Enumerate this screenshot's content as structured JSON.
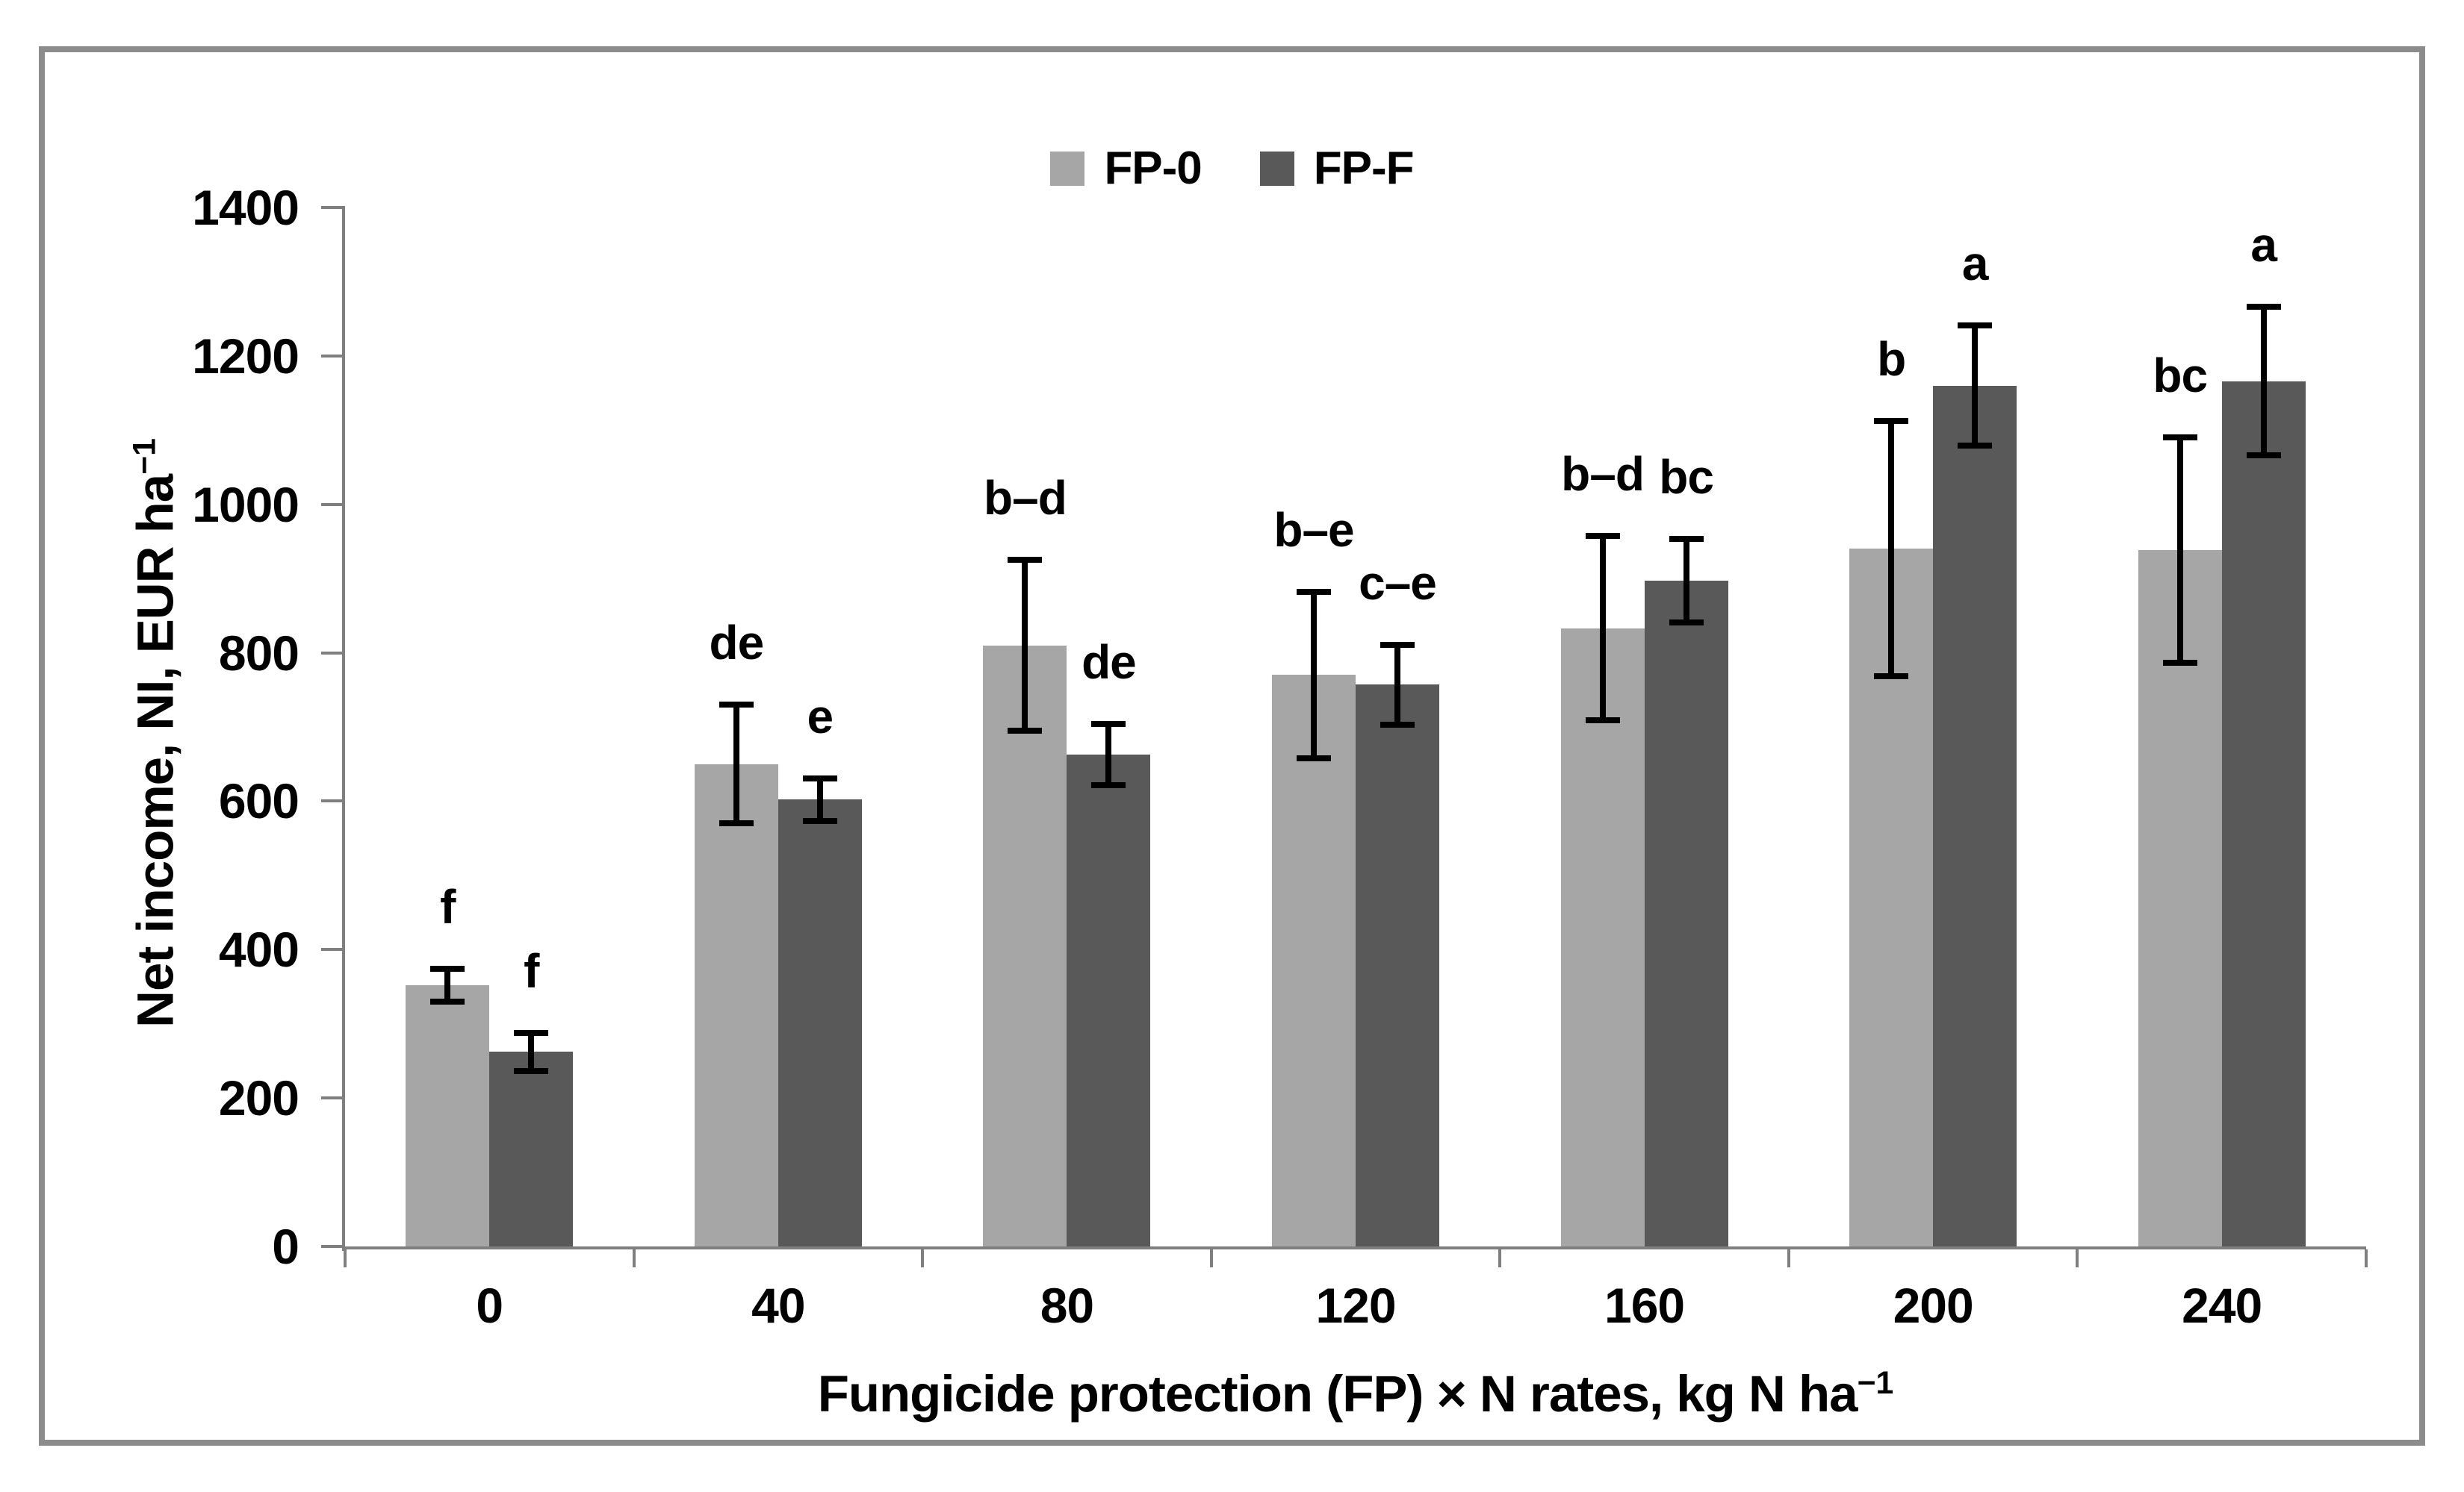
{
  "figure": {
    "border_color": "#8c8c8c",
    "background_color": "#ffffff",
    "axis_color": "#7f7f7f",
    "error_bar_color": "#000000"
  },
  "legend": {
    "items": [
      {
        "label": "FP-0",
        "color": "#a6a6a6"
      },
      {
        "label": "FP-F",
        "color": "#595959"
      }
    ]
  },
  "y_axis": {
    "title_text": "Net income, NI, EUR ha",
    "title_sup": "−1",
    "min": 0,
    "max": 1400,
    "step": 200,
    "tick_labels": [
      "0",
      "200",
      "400",
      "600",
      "800",
      "1000",
      "1200",
      "1400"
    ]
  },
  "x_axis": {
    "title_text": "Fungicide protection (FP) × N rates, kg N ha",
    "title_sup": "−1",
    "category_labels": [
      "0",
      "40",
      "80",
      "120",
      "160",
      "200",
      "240"
    ]
  },
  "chart_data": {
    "type": "bar",
    "title": "",
    "xlabel": "Fungicide protection (FP) × N rates, kg N ha−1",
    "ylabel": "Net income, NI, EUR ha−1",
    "categories": [
      0,
      40,
      80,
      120,
      160,
      200,
      240
    ],
    "ylim": [
      0,
      1400
    ],
    "grid": false,
    "legend_position": "top-center",
    "error_bars": true,
    "series": [
      {
        "name": "FP-0",
        "color": "#a6a6a6",
        "values": [
          352,
          650,
          810,
          770,
          833,
          940,
          938
        ],
        "errors": [
          22,
          80,
          115,
          112,
          124,
          172,
          152
        ],
        "letters": [
          "f",
          "de",
          "b–d",
          "b–e",
          "b–d",
          "b",
          "bc"
        ]
      },
      {
        "name": "FP-F",
        "color": "#595959",
        "values": [
          262,
          602,
          663,
          757,
          897,
          1160,
          1166
        ],
        "errors": [
          26,
          29,
          41,
          54,
          56,
          81,
          100
        ],
        "letters": [
          "f",
          "e",
          "de",
          "c–e",
          "bc",
          "a",
          "a"
        ]
      }
    ]
  }
}
